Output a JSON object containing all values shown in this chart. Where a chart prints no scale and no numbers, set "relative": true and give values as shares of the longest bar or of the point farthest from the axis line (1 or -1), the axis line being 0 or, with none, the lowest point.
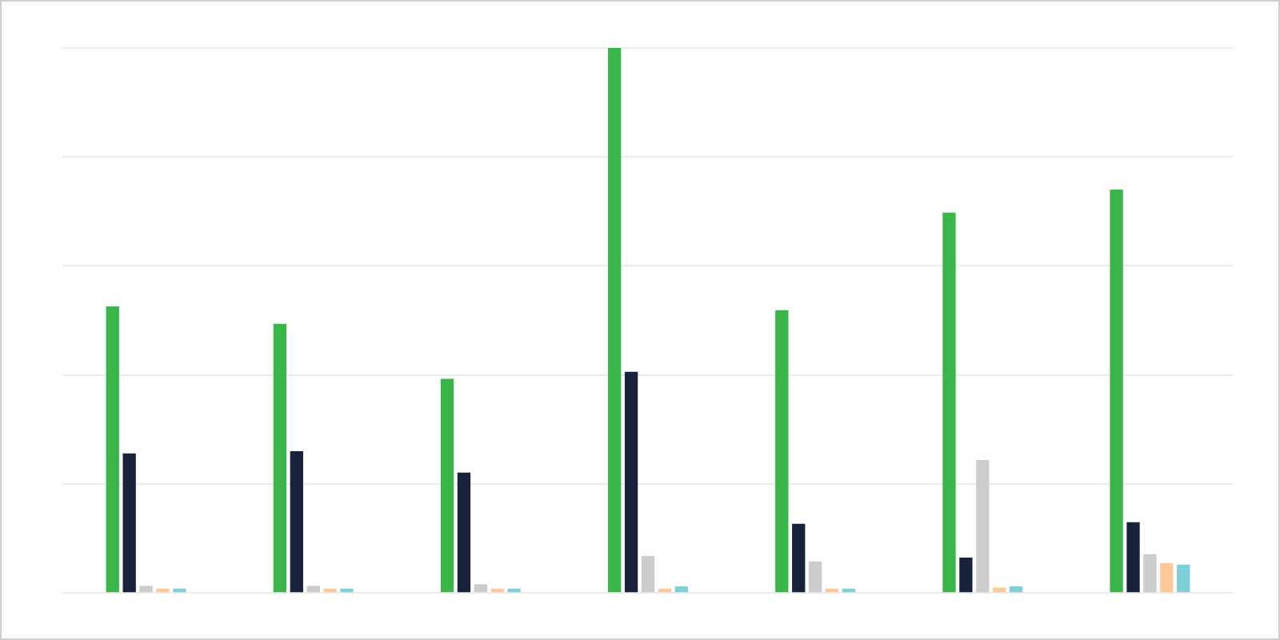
{
  "chart_data": {
    "type": "bar",
    "relative": true,
    "grid": "y",
    "legend": false,
    "categories": [
      null,
      null,
      null,
      null,
      null,
      null,
      null
    ],
    "series": [
      {
        "color": "#39b54a",
        "values": [
          0.526,
          0.494,
          0.393,
          1,
          0.519,
          0.698,
          0.74
        ]
      },
      {
        "color": "#18223a",
        "values": [
          0.256,
          0.26,
          0.221,
          0.406,
          0.127,
          0.065,
          0.13
        ]
      },
      {
        "color": "#cccccc",
        "values": [
          0.013,
          0.013,
          0.016,
          0.068,
          0.058,
          0.244,
          0.071
        ]
      },
      {
        "color": "#fdc89a",
        "values": [
          0.008,
          0.008,
          0.008,
          0.008,
          0.008,
          0.01,
          0.055
        ]
      },
      {
        "color": "#7fcfd9",
        "values": [
          0.008,
          0.008,
          0.008,
          0.012,
          0.008,
          0.012,
          0.052
        ]
      }
    ]
  }
}
